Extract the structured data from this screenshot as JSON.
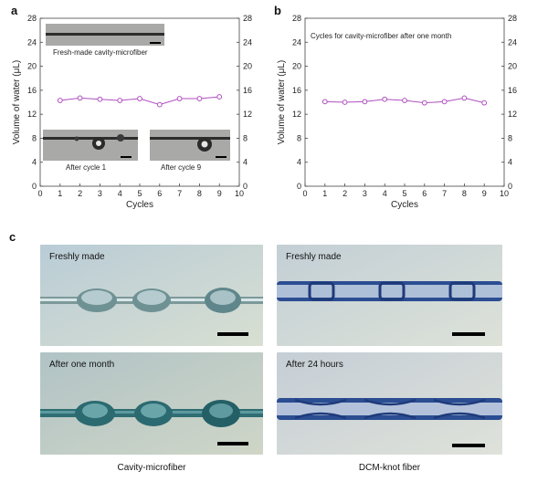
{
  "panels": {
    "a": "a",
    "b": "b",
    "c": "c"
  },
  "chart_data": [
    {
      "id": "a",
      "type": "scatter-line",
      "x": [
        1,
        2,
        3,
        4,
        5,
        6,
        7,
        8,
        9
      ],
      "series": [
        {
          "values": [
            14.3,
            14.7,
            14.5,
            14.3,
            14.6,
            13.6,
            14.6,
            14.6,
            14.9
          ],
          "color": "#b04fc0"
        }
      ],
      "xlabel": "Cycles",
      "ylabel": "Volume of water (μL)",
      "xlim": [
        0,
        10
      ],
      "ylim": [
        0,
        28
      ],
      "xticks": [
        "0",
        "1",
        "2",
        "3",
        "4",
        "5",
        "6",
        "7",
        "8",
        "9",
        "10"
      ],
      "yticks": [
        "0",
        "4",
        "8",
        "12",
        "16",
        "20",
        "24",
        "28"
      ],
      "right_yticks": [
        "0",
        "4",
        "8",
        "12",
        "16",
        "20",
        "24",
        "28"
      ],
      "annotations": {
        "fresh": "Fresh-made cavity-microfiber",
        "cycle1": "After cycle 1",
        "cycle9": "After cycle 9"
      }
    },
    {
      "id": "b",
      "type": "scatter-line",
      "x": [
        1,
        2,
        3,
        4,
        5,
        6,
        7,
        8,
        9
      ],
      "series": [
        {
          "values": [
            14.1,
            14.0,
            14.1,
            14.5,
            14.3,
            13.9,
            14.1,
            14.7,
            13.9
          ],
          "color": "#b04fc0"
        }
      ],
      "xlabel": "Cycles",
      "ylabel": "Volume of water (μL)",
      "xlim": [
        0,
        10
      ],
      "ylim": [
        0,
        28
      ],
      "xticks": [
        "0",
        "1",
        "2",
        "3",
        "4",
        "5",
        "6",
        "7",
        "8",
        "9",
        "10"
      ],
      "yticks": [
        "0",
        "4",
        "8",
        "12",
        "16",
        "20",
        "24",
        "28"
      ],
      "right_yticks": [
        "0",
        "4",
        "8",
        "12",
        "16",
        "20",
        "24",
        "28"
      ],
      "annotations": {
        "title": "Cycles for cavity-microfiber after one month"
      }
    }
  ],
  "photos": {
    "fresh_cavity": "Freshly made",
    "month_cavity": "After one month",
    "fresh_dcm": "Freshly made",
    "hours_dcm": "After 24 hours",
    "caption_left": "Cavity-microfiber",
    "caption_right": "DCM-knot fiber"
  }
}
